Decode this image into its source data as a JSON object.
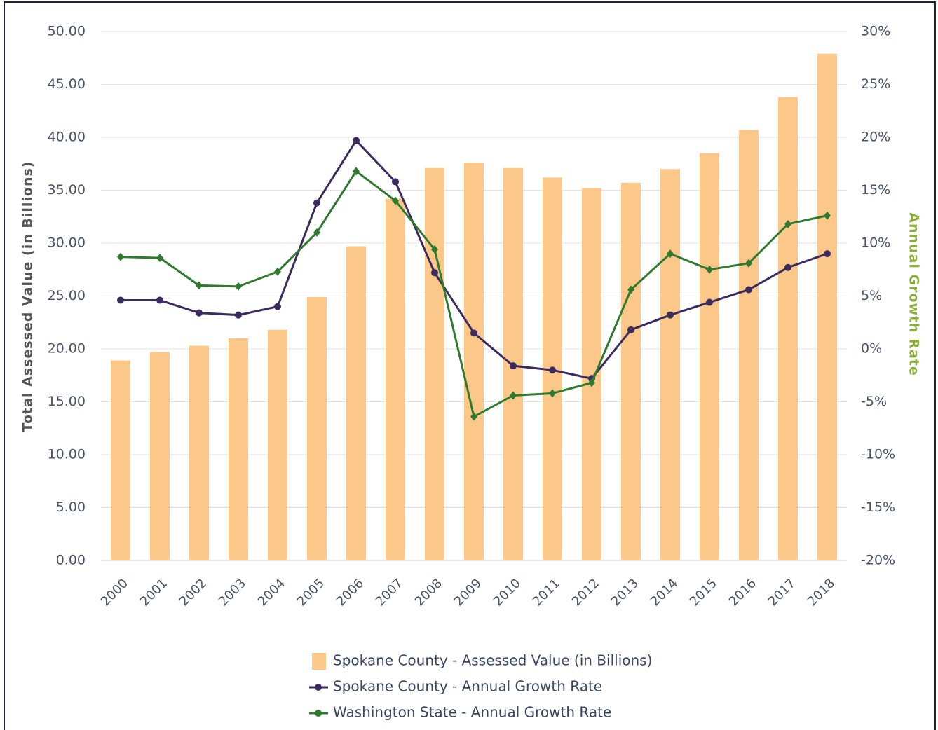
{
  "chart_data": {
    "type": "combo",
    "y_axis_title": "Total Assessed Value (in Billions)",
    "y2_axis_title": "Annual Growth Rate",
    "categories": [
      "2000",
      "2001",
      "2002",
      "2003",
      "2004",
      "2005",
      "2006",
      "2007",
      "2008",
      "2009",
      "2010",
      "2011",
      "2012",
      "2013",
      "2014",
      "2015",
      "2016",
      "2017",
      "2018"
    ],
    "series": [
      {
        "name": "Spokane County - Assessed Value (in Billions)",
        "type": "bar",
        "color": "#fcc88a",
        "values": [
          18.9,
          19.7,
          20.3,
          21.0,
          21.8,
          24.9,
          29.7,
          34.2,
          37.1,
          37.6,
          37.1,
          36.2,
          35.2,
          35.7,
          37.0,
          38.5,
          40.7,
          43.8,
          47.9
        ]
      },
      {
        "name": "Spokane County - Annual Growth Rate",
        "type": "line",
        "axis": "y2",
        "marker": "circle",
        "color": "#3b2b5e",
        "values": [
          4.6,
          4.6,
          3.4,
          3.2,
          4.0,
          13.8,
          19.7,
          15.8,
          7.2,
          1.5,
          -1.6,
          -2.0,
          -2.8,
          1.8,
          3.2,
          4.4,
          5.6,
          7.7,
          9.0
        ]
      },
      {
        "name": "Washington State - Annual Growth Rate",
        "type": "line",
        "axis": "y2",
        "marker": "diamond",
        "color": "#2f7a2f",
        "values": [
          8.7,
          8.6,
          6.0,
          5.9,
          7.3,
          11.0,
          16.8,
          14.0,
          9.4,
          -6.4,
          -4.4,
          -4.2,
          -3.2,
          5.6,
          9.0,
          7.5,
          8.1,
          11.8,
          12.6
        ]
      }
    ],
    "ylim": [
      0,
      50
    ],
    "yticks": [
      {
        "value": 0,
        "label": "0.00"
      },
      {
        "value": 5,
        "label": "5.00"
      },
      {
        "value": 10,
        "label": "10.00"
      },
      {
        "value": 15,
        "label": "15.00"
      },
      {
        "value": 20,
        "label": "20.00"
      },
      {
        "value": 25,
        "label": "25.00"
      },
      {
        "value": 30,
        "label": "30.00"
      },
      {
        "value": 35,
        "label": "35.00"
      },
      {
        "value": 40,
        "label": "40.00"
      },
      {
        "value": 45,
        "label": "45.00"
      },
      {
        "value": 50,
        "label": "50.00"
      }
    ],
    "y2lim": [
      -20,
      30
    ],
    "y2ticks": [
      {
        "value": -20,
        "label": "-20%"
      },
      {
        "value": -15,
        "label": "-15%"
      },
      {
        "value": -10,
        "label": "-10%"
      },
      {
        "value": -5,
        "label": "-5%"
      },
      {
        "value": 0,
        "label": "0%"
      },
      {
        "value": 5,
        "label": "5%"
      },
      {
        "value": 10,
        "label": "10%"
      },
      {
        "value": 15,
        "label": "15%"
      },
      {
        "value": 20,
        "label": "20%"
      },
      {
        "value": 25,
        "label": "25%"
      },
      {
        "value": 30,
        "label": "30%"
      }
    ],
    "grid": true,
    "y2_title_color": "#8aad3a"
  }
}
